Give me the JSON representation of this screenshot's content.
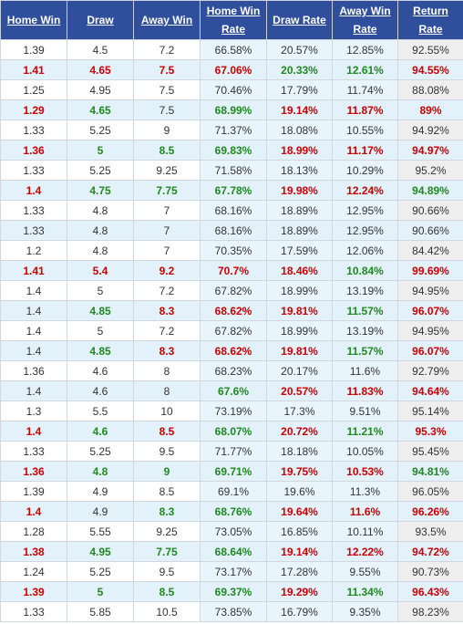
{
  "headers": [
    "Home Win",
    "Draw",
    "Away Win",
    "Home Win Rate",
    "Draw Rate",
    "Away Win Rate",
    "Return Rate"
  ],
  "rows": [
    {
      "v": [
        "1.39",
        "4.5",
        "7.2",
        "66.58%",
        "20.57%",
        "12.85%",
        "92.55%"
      ],
      "c": [
        "plain",
        "plain",
        "plain",
        "plain",
        "plain",
        "plain",
        "plain"
      ]
    },
    {
      "v": [
        "1.41",
        "4.65",
        "7.5",
        "67.06%",
        "20.33%",
        "12.61%",
        "94.55%"
      ],
      "c": [
        "red",
        "red",
        "red",
        "red",
        "green",
        "green",
        "red"
      ]
    },
    {
      "v": [
        "1.25",
        "4.95",
        "7.5",
        "70.46%",
        "17.79%",
        "11.74%",
        "88.08%"
      ],
      "c": [
        "plain",
        "plain",
        "plain",
        "plain",
        "plain",
        "plain",
        "plain"
      ]
    },
    {
      "v": [
        "1.29",
        "4.65",
        "7.5",
        "68.99%",
        "19.14%",
        "11.87%",
        "89%"
      ],
      "c": [
        "red",
        "green",
        "plain",
        "green",
        "red",
        "red",
        "red"
      ]
    },
    {
      "v": [
        "1.33",
        "5.25",
        "9",
        "71.37%",
        "18.08%",
        "10.55%",
        "94.92%"
      ],
      "c": [
        "plain",
        "plain",
        "plain",
        "plain",
        "plain",
        "plain",
        "plain"
      ]
    },
    {
      "v": [
        "1.36",
        "5",
        "8.5",
        "69.83%",
        "18.99%",
        "11.17%",
        "94.97%"
      ],
      "c": [
        "red",
        "green",
        "green",
        "green",
        "red",
        "red",
        "red"
      ]
    },
    {
      "v": [
        "1.33",
        "5.25",
        "9.25",
        "71.58%",
        "18.13%",
        "10.29%",
        "95.2%"
      ],
      "c": [
        "plain",
        "plain",
        "plain",
        "plain",
        "plain",
        "plain",
        "plain"
      ]
    },
    {
      "v": [
        "1.4",
        "4.75",
        "7.75",
        "67.78%",
        "19.98%",
        "12.24%",
        "94.89%"
      ],
      "c": [
        "red",
        "green",
        "green",
        "green",
        "red",
        "red",
        "green"
      ]
    },
    {
      "v": [
        "1.33",
        "4.8",
        "7",
        "68.16%",
        "18.89%",
        "12.95%",
        "90.66%"
      ],
      "c": [
        "plain",
        "plain",
        "plain",
        "plain",
        "plain",
        "plain",
        "plain"
      ]
    },
    {
      "v": [
        "1.33",
        "4.8",
        "7",
        "68.16%",
        "18.89%",
        "12.95%",
        "90.66%"
      ],
      "c": [
        "plain",
        "plain",
        "plain",
        "plain",
        "plain",
        "plain",
        "plain"
      ]
    },
    {
      "v": [
        "1.2",
        "4.8",
        "7",
        "70.35%",
        "17.59%",
        "12.06%",
        "84.42%"
      ],
      "c": [
        "plain",
        "plain",
        "plain",
        "plain",
        "plain",
        "plain",
        "plain"
      ]
    },
    {
      "v": [
        "1.41",
        "5.4",
        "9.2",
        "70.7%",
        "18.46%",
        "10.84%",
        "99.69%"
      ],
      "c": [
        "red",
        "red",
        "red",
        "red",
        "red",
        "green",
        "red"
      ]
    },
    {
      "v": [
        "1.4",
        "5",
        "7.2",
        "67.82%",
        "18.99%",
        "13.19%",
        "94.95%"
      ],
      "c": [
        "plain",
        "plain",
        "plain",
        "plain",
        "plain",
        "plain",
        "plain"
      ]
    },
    {
      "v": [
        "1.4",
        "4.85",
        "8.3",
        "68.62%",
        "19.81%",
        "11.57%",
        "96.07%"
      ],
      "c": [
        "plain",
        "green",
        "red",
        "red",
        "red",
        "green",
        "red"
      ]
    },
    {
      "v": [
        "1.4",
        "5",
        "7.2",
        "67.82%",
        "18.99%",
        "13.19%",
        "94.95%"
      ],
      "c": [
        "plain",
        "plain",
        "plain",
        "plain",
        "plain",
        "plain",
        "plain"
      ]
    },
    {
      "v": [
        "1.4",
        "4.85",
        "8.3",
        "68.62%",
        "19.81%",
        "11.57%",
        "96.07%"
      ],
      "c": [
        "plain",
        "green",
        "red",
        "red",
        "red",
        "green",
        "red"
      ]
    },
    {
      "v": [
        "1.36",
        "4.6",
        "8",
        "68.23%",
        "20.17%",
        "11.6%",
        "92.79%"
      ],
      "c": [
        "plain",
        "plain",
        "plain",
        "plain",
        "plain",
        "plain",
        "plain"
      ]
    },
    {
      "v": [
        "1.4",
        "4.6",
        "8",
        "67.6%",
        "20.57%",
        "11.83%",
        "94.64%"
      ],
      "c": [
        "plain",
        "plain",
        "plain",
        "green",
        "red",
        "red",
        "red"
      ]
    },
    {
      "v": [
        "1.3",
        "5.5",
        "10",
        "73.19%",
        "17.3%",
        "9.51%",
        "95.14%"
      ],
      "c": [
        "plain",
        "plain",
        "plain",
        "plain",
        "plain",
        "plain",
        "plain"
      ]
    },
    {
      "v": [
        "1.4",
        "4.6",
        "8.5",
        "68.07%",
        "20.72%",
        "11.21%",
        "95.3%"
      ],
      "c": [
        "red",
        "green",
        "red",
        "green",
        "red",
        "green",
        "red"
      ]
    },
    {
      "v": [
        "1.33",
        "5.25",
        "9.5",
        "71.77%",
        "18.18%",
        "10.05%",
        "95.45%"
      ],
      "c": [
        "plain",
        "plain",
        "plain",
        "plain",
        "plain",
        "plain",
        "plain"
      ]
    },
    {
      "v": [
        "1.36",
        "4.8",
        "9",
        "69.71%",
        "19.75%",
        "10.53%",
        "94.81%"
      ],
      "c": [
        "red",
        "green",
        "green",
        "green",
        "red",
        "red",
        "green"
      ]
    },
    {
      "v": [
        "1.39",
        "4.9",
        "8.5",
        "69.1%",
        "19.6%",
        "11.3%",
        "96.05%"
      ],
      "c": [
        "plain",
        "plain",
        "plain",
        "plain",
        "plain",
        "plain",
        "plain"
      ]
    },
    {
      "v": [
        "1.4",
        "4.9",
        "8.3",
        "68.76%",
        "19.64%",
        "11.6%",
        "96.26%"
      ],
      "c": [
        "red",
        "plain",
        "green",
        "green",
        "red",
        "red",
        "red"
      ]
    },
    {
      "v": [
        "1.28",
        "5.55",
        "9.25",
        "73.05%",
        "16.85%",
        "10.11%",
        "93.5%"
      ],
      "c": [
        "plain",
        "plain",
        "plain",
        "plain",
        "plain",
        "plain",
        "plain"
      ]
    },
    {
      "v": [
        "1.38",
        "4.95",
        "7.75",
        "68.64%",
        "19.14%",
        "12.22%",
        "94.72%"
      ],
      "c": [
        "red",
        "green",
        "green",
        "green",
        "red",
        "red",
        "red"
      ]
    },
    {
      "v": [
        "1.24",
        "5.25",
        "9.5",
        "73.17%",
        "17.28%",
        "9.55%",
        "90.73%"
      ],
      "c": [
        "plain",
        "plain",
        "plain",
        "plain",
        "plain",
        "plain",
        "plain"
      ]
    },
    {
      "v": [
        "1.39",
        "5",
        "8.5",
        "69.37%",
        "19.29%",
        "11.34%",
        "96.43%"
      ],
      "c": [
        "red",
        "green",
        "green",
        "green",
        "red",
        "green",
        "red"
      ]
    },
    {
      "v": [
        "1.33",
        "5.85",
        "10.5",
        "73.85%",
        "16.79%",
        "9.35%",
        "98.23%"
      ],
      "c": [
        "plain",
        "plain",
        "plain",
        "plain",
        "plain",
        "plain",
        "plain"
      ]
    }
  ]
}
